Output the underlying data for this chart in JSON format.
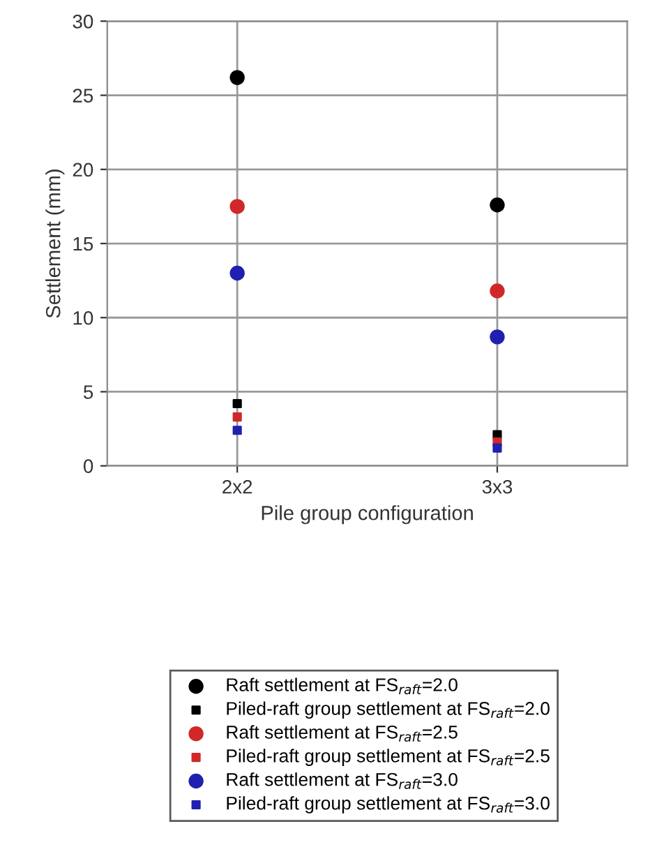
{
  "chart_data": {
    "type": "scatter",
    "xlabel": "Pile group configuration",
    "ylabel": "Settlement (mm)",
    "categories": [
      "2x2",
      "3x3"
    ],
    "ylim": [
      0,
      30
    ],
    "yticks": [
      0,
      5,
      10,
      15,
      20,
      25,
      30
    ],
    "grid": true,
    "legend": "bottom",
    "series": [
      {
        "name": "Raft settlement at FS$_{raft}$=2.0",
        "color": "#000000",
        "marker": "circle",
        "values": [
          26.2,
          17.6
        ]
      },
      {
        "name": "Piled-raft group settlement at FS$_{raft}$=2.0",
        "color": "#000000",
        "marker": "square",
        "values": [
          4.2,
          2.1
        ]
      },
      {
        "name": "Raft settlement at FS$_{raft}$=2.5",
        "color": "#d02828",
        "marker": "circle",
        "values": [
          17.5,
          11.8
        ]
      },
      {
        "name": "Piled-raft group settlement at FS$_{raft}$=2.5",
        "color": "#d02828",
        "marker": "square",
        "values": [
          3.3,
          1.6
        ]
      },
      {
        "name": "Raft settlement at FS$_{raft}$=3.0",
        "color": "#2020b0",
        "marker": "circle",
        "values": [
          13.0,
          8.7
        ]
      },
      {
        "name": "Piled-raft group settlement at FS$_{raft}$=3.0",
        "color": "#2020b0",
        "marker": "square",
        "values": [
          2.4,
          1.2
        ]
      }
    ]
  }
}
